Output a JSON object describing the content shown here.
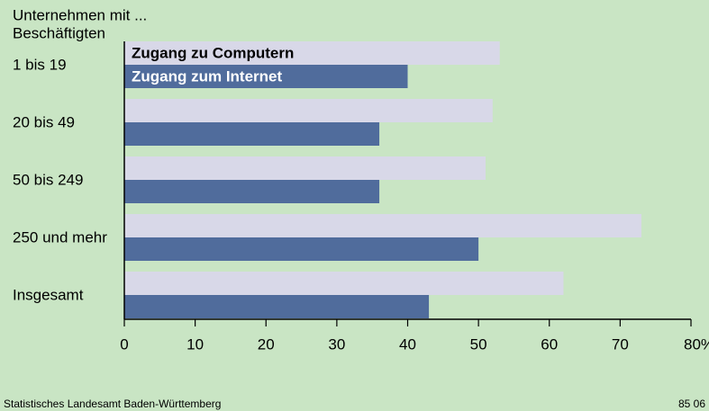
{
  "chart_data": {
    "type": "hbar",
    "title": [
      "Unternehmen mit ...",
      "Beschäftigten"
    ],
    "categories": [
      "1 bis 19",
      "20 bis 49",
      "50 bis 249",
      "250 und mehr",
      "Insgesamt"
    ],
    "series": [
      {
        "name": "Zugang zu Computern",
        "color": "#d8d8e8",
        "values": [
          53,
          52,
          51,
          73,
          62
        ]
      },
      {
        "name": "Zugang zum Internet",
        "color": "#506c9c",
        "values": [
          40,
          36,
          36,
          50,
          43
        ]
      }
    ],
    "xlim": [
      0,
      80
    ],
    "xticks": [
      0,
      10,
      20,
      30,
      40,
      50,
      60,
      70,
      {
        "value": 80,
        "label": "80%"
      }
    ],
    "source": "Statistisches Landesamt Baden-Württemberg",
    "code": "85 06"
  }
}
